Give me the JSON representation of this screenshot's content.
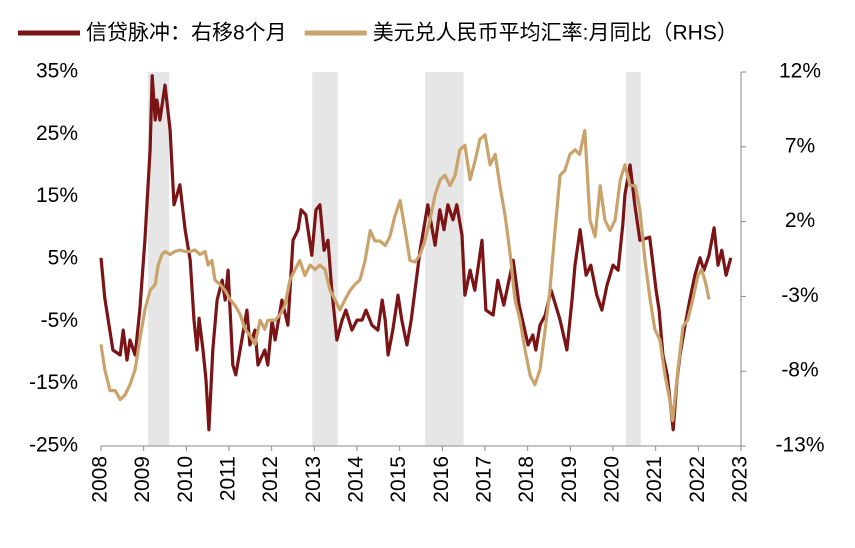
{
  "chart_data": {
    "type": "line",
    "xlim": [
      2008,
      2023
    ],
    "xticks": [
      2008,
      2009,
      2010,
      2011,
      2012,
      2013,
      2014,
      2015,
      2016,
      2017,
      2018,
      2019,
      2020,
      2021,
      2022,
      2023
    ],
    "ylim": [
      -25,
      35
    ],
    "yticks": [
      {
        "value": 35,
        "label": "35%"
      },
      {
        "value": 25,
        "label": "25%"
      },
      {
        "value": 15,
        "label": "15%"
      },
      {
        "value": 5,
        "label": "5%"
      },
      {
        "value": -5,
        "label": "-5%"
      },
      {
        "value": -15,
        "label": "-15%"
      },
      {
        "value": -25,
        "label": "-25%"
      }
    ],
    "y2lim": [
      -13,
      12
    ],
    "y2ticks": [
      {
        "value": 12,
        "label": "12%"
      },
      {
        "value": 7,
        "label": "7%"
      },
      {
        "value": 2,
        "label": "2%"
      },
      {
        "value": -3,
        "label": "-3%"
      },
      {
        "value": -8,
        "label": "-8%"
      },
      {
        "value": -13,
        "label": "-13%"
      }
    ],
    "legend": "top",
    "shade_color": "#e6e6e6",
    "shaded_periods": [
      [
        2009.1,
        2009.6
      ],
      [
        2012.95,
        2013.55
      ],
      [
        2015.6,
        2016.5
      ],
      [
        2020.3,
        2020.65
      ]
    ],
    "series": [
      {
        "name": "信贷脉冲：右移8个月",
        "color": "#7b1416",
        "axis": "y",
        "x": [
          2008.0,
          2008.09,
          2008.28,
          2008.45,
          2008.52,
          2008.61,
          2008.68,
          2008.8,
          2008.91,
          2009.03,
          2009.15,
          2009.2,
          2009.27,
          2009.31,
          2009.38,
          2009.5,
          2009.62,
          2009.71,
          2009.85,
          2009.97,
          2010.09,
          2010.18,
          2010.25,
          2010.3,
          2010.39,
          2010.46,
          2010.53,
          2010.62,
          2010.72,
          2010.84,
          2010.91,
          2010.98,
          2011.09,
          2011.16,
          2011.3,
          2011.42,
          2011.49,
          2011.61,
          2011.68,
          2011.84,
          2011.91,
          2012.01,
          2012.08,
          2012.24,
          2012.38,
          2012.5,
          2012.62,
          2012.69,
          2012.8,
          2012.94,
          2013.04,
          2013.13,
          2013.23,
          2013.32,
          2013.41,
          2013.53,
          2013.65,
          2013.74,
          2013.88,
          2014.0,
          2014.12,
          2014.21,
          2014.35,
          2014.49,
          2014.59,
          2014.66,
          2014.73,
          2014.84,
          2014.96,
          2015.05,
          2015.17,
          2015.27,
          2015.36,
          2015.48,
          2015.66,
          2015.83,
          2015.94,
          2016.04,
          2016.13,
          2016.25,
          2016.34,
          2016.46,
          2016.53,
          2016.65,
          2016.76,
          2016.93,
          2017.02,
          2017.19,
          2017.3,
          2017.44,
          2017.66,
          2017.8,
          2018.01,
          2018.12,
          2018.19,
          2018.29,
          2018.41,
          2018.55,
          2018.76,
          2018.92,
          2019.04,
          2019.11,
          2019.23,
          2019.37,
          2019.48,
          2019.62,
          2019.74,
          2019.86,
          2020.0,
          2020.12,
          2020.23,
          2020.28,
          2020.4,
          2020.51,
          2020.63,
          2020.86,
          2021.01,
          2021.08,
          2021.17,
          2021.27,
          2021.41,
          2021.5,
          2021.57,
          2021.69,
          2021.8,
          2021.92,
          2022.04,
          2022.13,
          2022.25,
          2022.37,
          2022.46,
          2022.55,
          2022.65,
          2022.76
        ],
        "values": [
          5.2,
          -1.3,
          -9.6,
          -10.4,
          -6.4,
          -11.2,
          -8.0,
          -10.4,
          -3.2,
          8.0,
          22.5,
          34.4,
          27.3,
          30.5,
          27.3,
          32.9,
          25.7,
          13.7,
          16.9,
          9.7,
          4.8,
          -4.8,
          -9.6,
          -4.5,
          -9.6,
          -14.4,
          -22.4,
          -9.6,
          -1.6,
          1.6,
          -1.6,
          3.2,
          -12.0,
          -13.6,
          -8.0,
          -3.2,
          -8.8,
          -6.4,
          -12.0,
          -9.6,
          -12.0,
          -4.8,
          -8.0,
          -1.6,
          -5.6,
          8.0,
          9.7,
          12.9,
          12.1,
          5.6,
          12.9,
          13.7,
          6.4,
          8.0,
          0.0,
          -8.0,
          -4.8,
          -3.2,
          -6.4,
          -4.8,
          -4.8,
          -3.2,
          -5.6,
          -6.4,
          -1.6,
          -4.8,
          -10.4,
          -6.4,
          -0.8,
          -4.8,
          -8.8,
          -4.8,
          0.0,
          6.4,
          13.7,
          7.2,
          12.9,
          9.7,
          13.7,
          11.3,
          13.7,
          8.8,
          -0.8,
          3.2,
          0.0,
          8.0,
          -3.2,
          -4.0,
          1.6,
          -2.4,
          4.8,
          -2.4,
          -8.8,
          -7.2,
          -9.6,
          -5.6,
          -4.0,
          0.0,
          -4.8,
          -9.6,
          -1.6,
          4.0,
          9.7,
          2.4,
          4.0,
          -0.8,
          -3.2,
          0.8,
          4.0,
          3.2,
          10.5,
          15.3,
          20.1,
          13.7,
          8.0,
          8.5,
          0.0,
          -3.2,
          -10.4,
          -13.6,
          -22.4,
          -14.4,
          -10.4,
          -5.6,
          -1.6,
          2.4,
          5.2,
          3.2,
          5.6,
          10.0,
          4.0,
          6.4,
          2.4,
          5.2
        ]
      },
      {
        "name": "美元兑人民币平均汇率:月同比（RHS）",
        "color": "#c9a36b",
        "axis": "y2",
        "x": [
          2008.0,
          2008.09,
          2008.21,
          2008.33,
          2008.45,
          2008.56,
          2008.68,
          2008.8,
          2008.91,
          2009.03,
          2009.15,
          2009.27,
          2009.34,
          2009.43,
          2009.5,
          2009.62,
          2009.73,
          2009.85,
          2009.97,
          2010.09,
          2010.2,
          2010.32,
          2010.44,
          2010.51,
          2010.6,
          2010.67,
          2010.79,
          2010.91,
          2011.02,
          2011.14,
          2011.26,
          2011.38,
          2011.49,
          2011.61,
          2011.73,
          2011.84,
          2011.91,
          2012.08,
          2012.2,
          2012.31,
          2012.43,
          2012.55,
          2012.66,
          2012.78,
          2012.9,
          2013.02,
          2013.13,
          2013.25,
          2013.37,
          2013.48,
          2013.6,
          2013.72,
          2013.84,
          2013.95,
          2014.07,
          2014.19,
          2014.31,
          2014.42,
          2014.54,
          2014.66,
          2014.77,
          2014.89,
          2015.01,
          2015.13,
          2015.24,
          2015.36,
          2015.48,
          2015.59,
          2015.71,
          2015.83,
          2015.95,
          2016.06,
          2016.18,
          2016.3,
          2016.41,
          2016.53,
          2016.65,
          2016.77,
          2016.88,
          2017.0,
          2017.12,
          2017.24,
          2017.35,
          2017.47,
          2017.59,
          2017.7,
          2017.82,
          2017.94,
          2018.06,
          2018.17,
          2018.29,
          2018.41,
          2018.52,
          2018.64,
          2018.76,
          2018.87,
          2018.99,
          2019.11,
          2019.22,
          2019.34,
          2019.46,
          2019.58,
          2019.7,
          2019.81,
          2019.93,
          2020.05,
          2020.17,
          2020.28,
          2020.4,
          2020.52,
          2020.63,
          2020.75,
          2020.87,
          2020.98,
          2021.1,
          2021.22,
          2021.33,
          2021.4,
          2021.52,
          2021.64,
          2021.75,
          2021.87,
          2021.99,
          2022.08,
          2022.18,
          2022.25
        ],
        "values": [
          -6.2,
          -7.9,
          -9.3,
          -9.3,
          -9.9,
          -9.6,
          -8.9,
          -7.9,
          -5.9,
          -3.9,
          -2.6,
          -2.2,
          -0.9,
          -0.2,
          0.0,
          -0.2,
          0.0,
          0.1,
          0.0,
          0.0,
          0.1,
          -0.2,
          0.0,
          -0.9,
          -0.6,
          -1.9,
          -2.2,
          -2.6,
          -3.2,
          -3.6,
          -4.2,
          -5.2,
          -5.6,
          -6.2,
          -4.6,
          -5.2,
          -4.6,
          -4.6,
          -4.2,
          -3.6,
          -1.9,
          -1.2,
          -0.6,
          -1.6,
          -0.9,
          -1.2,
          -0.9,
          -1.2,
          -2.6,
          -3.2,
          -3.9,
          -3.2,
          -2.6,
          -2.2,
          -1.9,
          -0.6,
          1.4,
          0.7,
          0.7,
          0.4,
          1.0,
          2.4,
          3.4,
          1.4,
          -0.6,
          -0.7,
          -0.2,
          0.7,
          2.1,
          3.8,
          4.8,
          5.1,
          4.4,
          5.1,
          6.8,
          7.1,
          4.8,
          6.1,
          7.5,
          7.8,
          5.8,
          6.5,
          4.4,
          2.4,
          -0.2,
          -3.2,
          -4.6,
          -6.6,
          -8.3,
          -8.9,
          -7.9,
          -5.2,
          -2.6,
          1.4,
          5.1,
          5.4,
          6.5,
          6.8,
          6.5,
          8.1,
          2.1,
          1.0,
          4.4,
          2.1,
          1.4,
          2.1,
          4.8,
          5.8,
          4.4,
          4.4,
          2.8,
          -0.6,
          -3.2,
          -5.2,
          -5.9,
          -8.3,
          -9.9,
          -11.3,
          -7.9,
          -5.0,
          -4.6,
          -3.2,
          -1.6,
          -1.2,
          -2.2,
          -3.2
        ]
      }
    ]
  }
}
